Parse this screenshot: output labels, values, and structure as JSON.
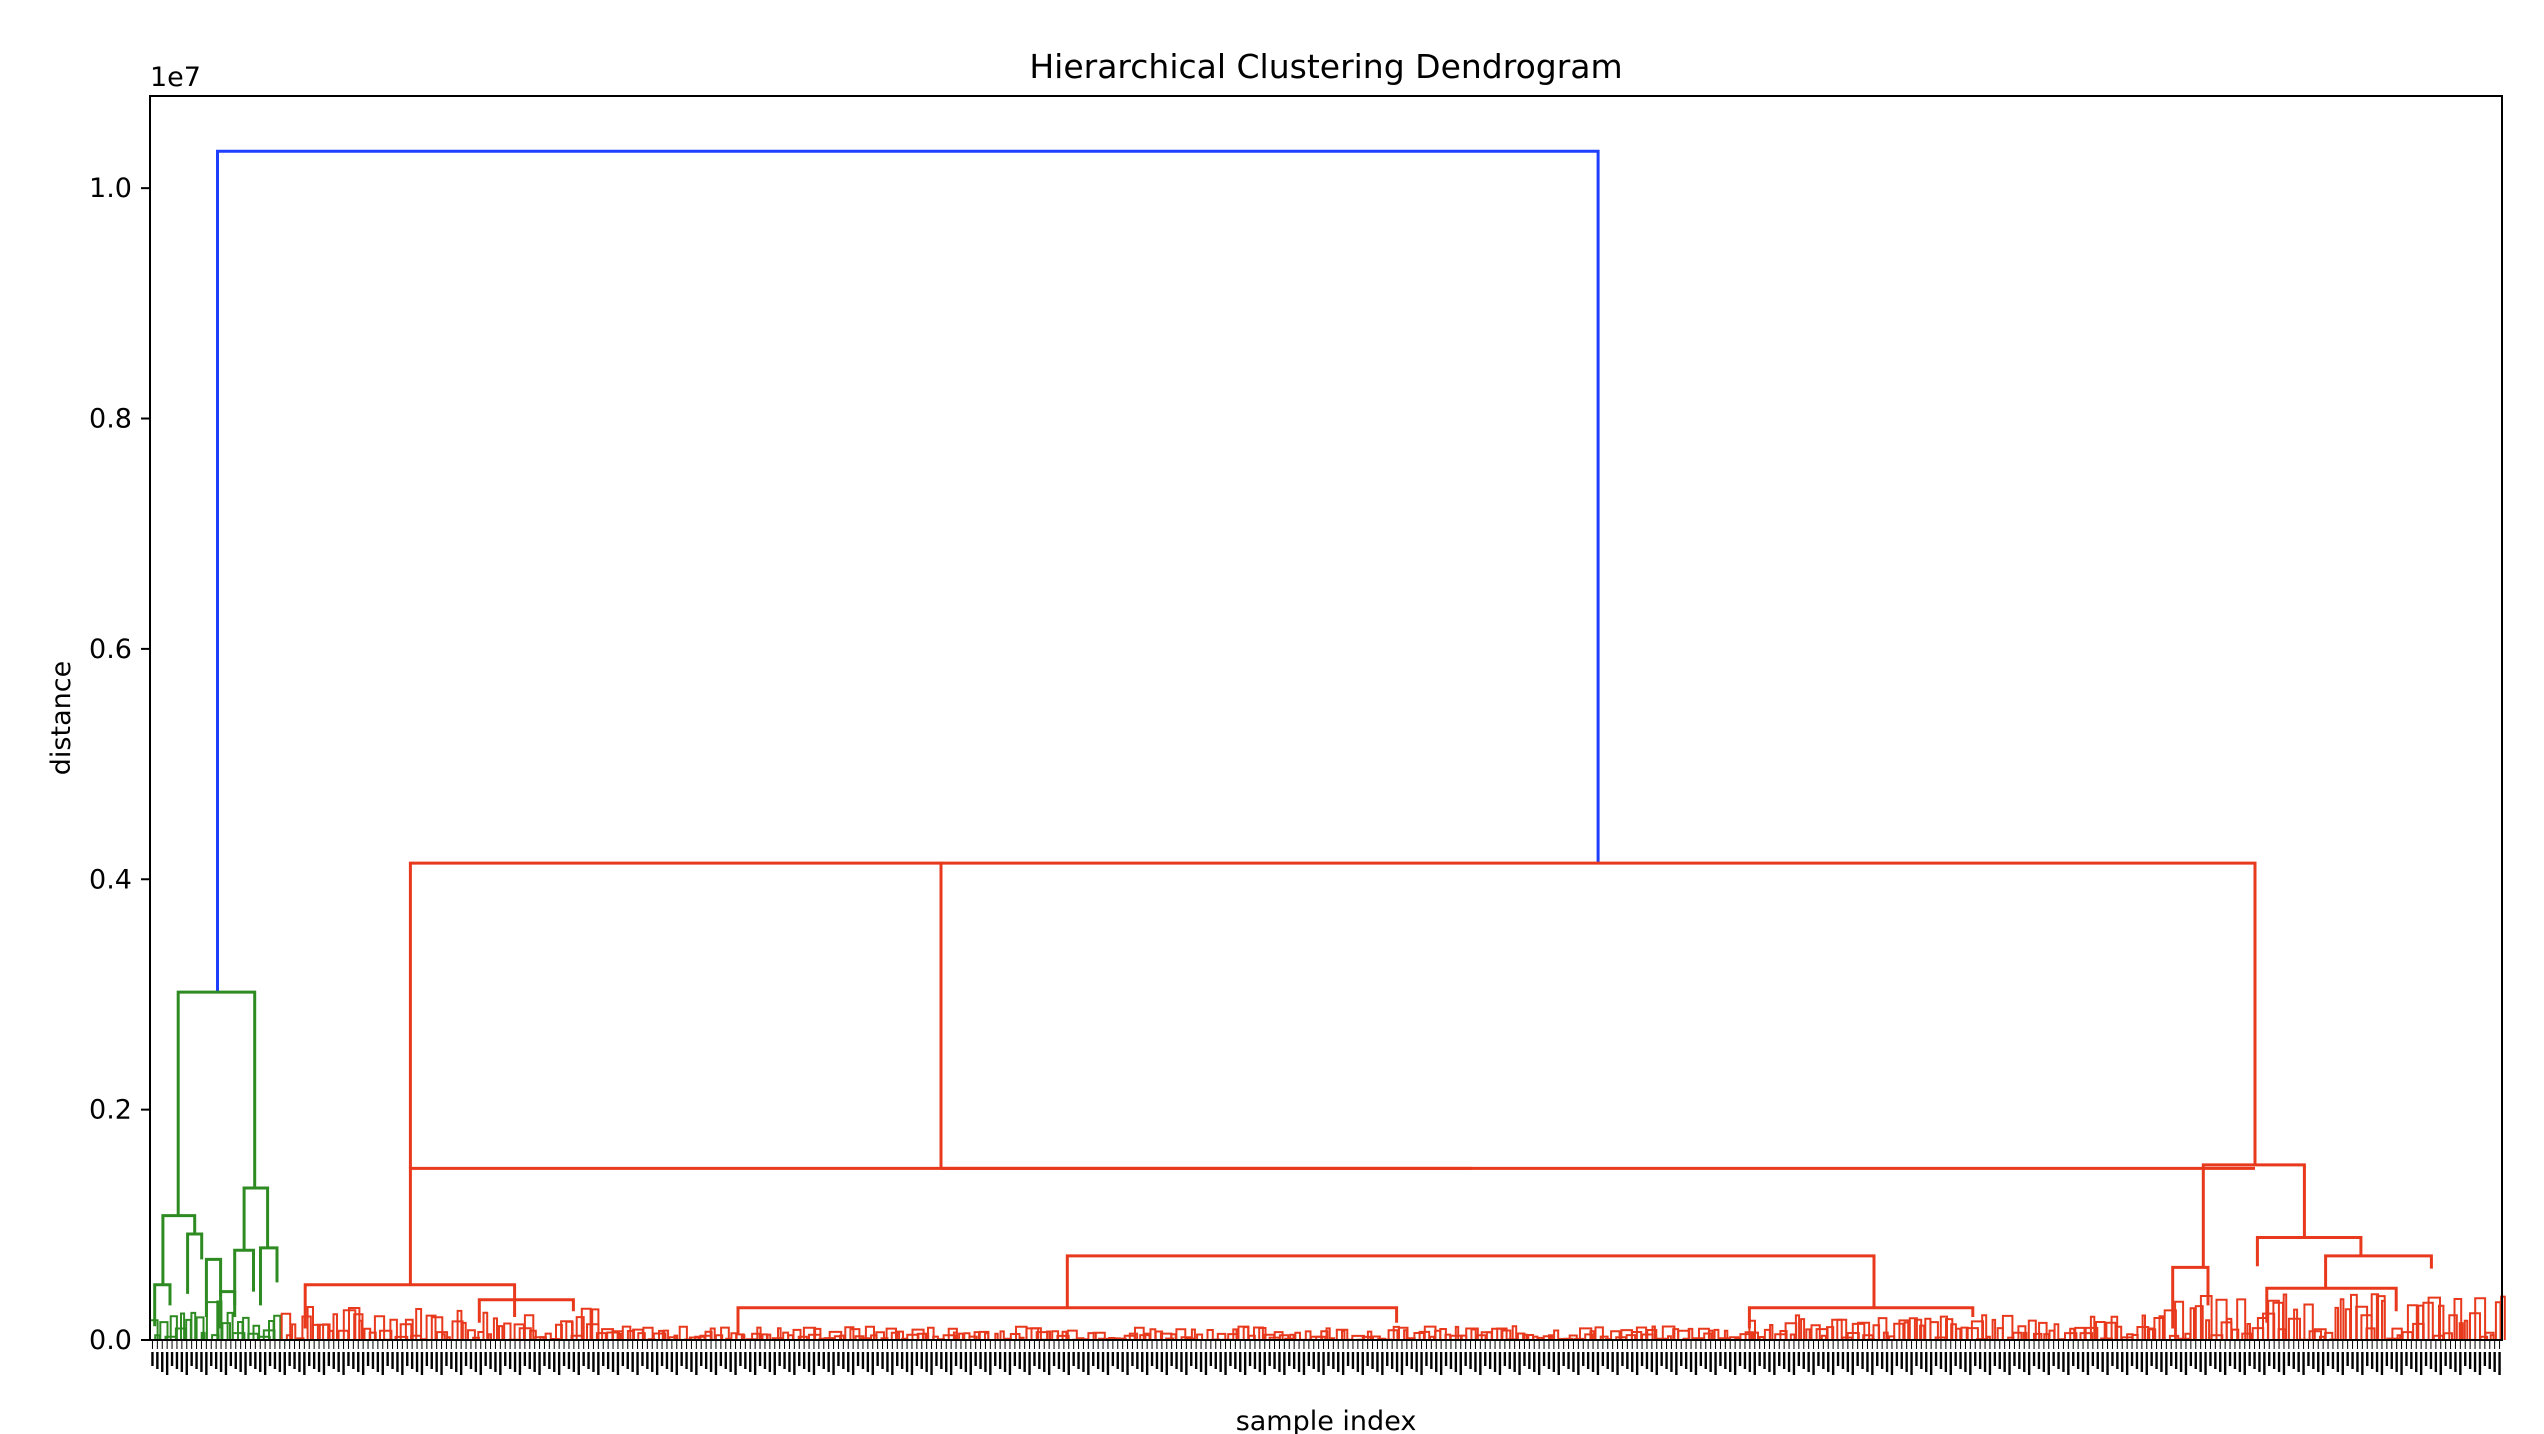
{
  "chart_data": {
    "type": "dendrogram",
    "title": "Hierarchical Clustering Dendrogram",
    "xlabel": "sample index",
    "ylabel": "distance",
    "y_offset_text": "1e7",
    "y_scale_factor": 10000000,
    "ylim": [
      0,
      10800000
    ],
    "x_domain": [
      0,
      1000
    ],
    "yticks": [
      {
        "value": 0.0,
        "label": "0.0"
      },
      {
        "value": 2000000,
        "label": "0.2"
      },
      {
        "value": 4000000,
        "label": "0.4"
      },
      {
        "value": 6000000,
        "label": "0.6"
      },
      {
        "value": 8000000,
        "label": "0.8"
      },
      {
        "value": 10000000,
        "label": "1.0"
      }
    ],
    "colors": {
      "root": "#1f3fff",
      "green": "#2e8b22",
      "red": "#e8391d",
      "frame": "#000000"
    },
    "leaf_count_estimate": 1000,
    "links": [
      {
        "x": [
          28.7,
          28.7,
          615.7,
          615.7
        ],
        "y": [
          3020000,
          10320000,
          10320000,
          4140000
        ],
        "color": "root"
      },
      {
        "x": [
          12.0,
          12.0,
          44.5,
          44.5
        ],
        "y": [
          1080000,
          3020000,
          3020000,
          1320000
        ],
        "color": "green"
      },
      {
        "x": [
          5.5,
          5.5,
          19.0,
          19.0
        ],
        "y": [
          480000,
          1080000,
          1080000,
          920000
        ],
        "color": "green"
      },
      {
        "x": [
          2.0,
          2.0,
          8.5,
          8.5
        ],
        "y": [
          120000,
          480000,
          480000,
          300000
        ],
        "color": "green"
      },
      {
        "x": [
          16.0,
          16.0,
          22.0,
          22.0
        ],
        "y": [
          400000,
          920000,
          920000,
          700000
        ],
        "color": "green"
      },
      {
        "x": [
          24.0,
          24.0,
          30.0,
          30.0
        ],
        "y": [
          200000,
          700000,
          700000,
          380000
        ],
        "color": "green"
      },
      {
        "x": [
          40.0,
          40.0,
          50.0,
          50.0
        ],
        "y": [
          780000,
          1320000,
          1320000,
          800000
        ],
        "color": "green"
      },
      {
        "x": [
          36.0,
          36.0,
          44.0,
          44.0
        ],
        "y": [
          200000,
          780000,
          780000,
          420000
        ],
        "color": "green"
      },
      {
        "x": [
          47.0,
          47.0,
          54.0,
          54.0
        ],
        "y": [
          300000,
          800000,
          800000,
          500000
        ],
        "color": "green"
      },
      {
        "x": [
          30.0,
          30.0,
          36.0,
          36.0
        ],
        "y": [
          100000,
          420000,
          420000,
          300000
        ],
        "color": "green"
      },
      {
        "x": [
          110.7,
          110.7,
          336.3,
          336.3
        ],
        "y": [
          1490000,
          4140000,
          4140000,
          1500000
        ],
        "color": "red"
      },
      {
        "x": [
          336.3,
          336.3,
          895.0,
          895.0
        ],
        "y": [
          1490000,
          1490000,
          1490000,
          1490000
        ],
        "color": "red"
      },
      {
        "x": [
          336.3,
          336.3,
          895.0,
          895.0
        ],
        "y": [
          4140000,
          4140000,
          4140000,
          1520000
        ],
        "color": "red"
      },
      {
        "x": [
          110.7,
          110.7,
          562.0,
          562.0
        ],
        "y": [
          480000,
          1490000,
          1490000,
          1490000
        ],
        "color": "red"
      },
      {
        "x": [
          66.0,
          66.0,
          155.0,
          155.0
        ],
        "y": [
          100000,
          480000,
          480000,
          200000
        ],
        "color": "red"
      },
      {
        "x": [
          140.0,
          140.0,
          180.0,
          180.0
        ],
        "y": [
          150000,
          350000,
          350000,
          250000
        ],
        "color": "red"
      },
      {
        "x": [
          390.0,
          390.0,
          733.0,
          733.0
        ],
        "y": [
          280000,
          730000,
          730000,
          280000
        ],
        "color": "red"
      },
      {
        "x": [
          250.0,
          250.0,
          530.0,
          530.0
        ],
        "y": [
          50000,
          280000,
          280000,
          150000
        ],
        "color": "red"
      },
      {
        "x": [
          680.0,
          680.0,
          775.0,
          775.0
        ],
        "y": [
          100000,
          280000,
          280000,
          200000
        ],
        "color": "red"
      },
      {
        "x": [
          873.0,
          873.0,
          916.0,
          916.0
        ],
        "y": [
          630000,
          1520000,
          1520000,
          890000
        ],
        "color": "red"
      },
      {
        "x": [
          896.0,
          896.0,
          940.0,
          940.0
        ],
        "y": [
          640000,
          890000,
          890000,
          730000
        ],
        "color": "red"
      },
      {
        "x": [
          925.0,
          925.0,
          970.0,
          970.0
        ],
        "y": [
          450000,
          730000,
          730000,
          620000
        ],
        "color": "red"
      },
      {
        "x": [
          860.0,
          860.0,
          875.0,
          875.0
        ],
        "y": [
          100000,
          630000,
          630000,
          300000
        ],
        "color": "red"
      },
      {
        "x": [
          900.0,
          900.0,
          955.0,
          955.0
        ],
        "y": [
          150000,
          450000,
          450000,
          250000
        ],
        "color": "red"
      }
    ]
  }
}
